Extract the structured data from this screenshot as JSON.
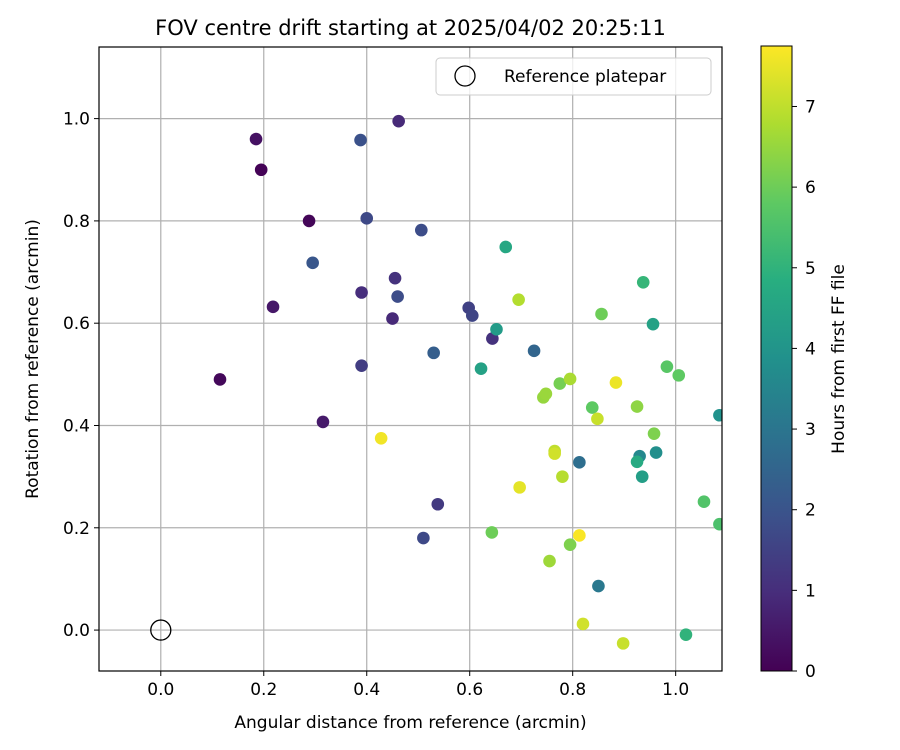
{
  "chart_data": {
    "type": "scatter",
    "title": "FOV centre drift starting at 2025/04/02 20:25:11",
    "xlabel": "Angular distance from reference (arcmin)",
    "ylabel": "Rotation from reference (arcmin)",
    "xlim": [
      -0.12,
      1.09
    ],
    "ylim": [
      -0.08,
      1.14
    ],
    "xticks": [
      "0.0",
      "0.2",
      "0.4",
      "0.6",
      "0.8",
      "1.0"
    ],
    "yticks": [
      "0.0",
      "0.2",
      "0.4",
      "0.6",
      "0.8",
      "1.0"
    ],
    "grid": true,
    "legend": {
      "placement": "top-right",
      "entries": [
        "Reference platepar"
      ]
    },
    "reference_point": {
      "x": 0.0,
      "y": 0.0,
      "marker": "open-circle",
      "color": "#000000"
    },
    "colorbar": {
      "label": "Hours from first FF file",
      "min": 0,
      "max": 7.75,
      "ticks": [
        "0",
        "1",
        "2",
        "3",
        "4",
        "5",
        "6",
        "7"
      ],
      "colormap": "viridis"
    },
    "points": [
      {
        "x": 0.195,
        "y": 0.9,
        "h": 0.05
      },
      {
        "x": 0.288,
        "y": 0.8,
        "h": 0.1
      },
      {
        "x": 0.115,
        "y": 0.49,
        "h": 0.15
      },
      {
        "x": 0.185,
        "y": 0.96,
        "h": 0.35
      },
      {
        "x": 0.218,
        "y": 0.632,
        "h": 0.5
      },
      {
        "x": 0.315,
        "y": 0.407,
        "h": 0.55
      },
      {
        "x": 0.462,
        "y": 0.995,
        "h": 0.9
      },
      {
        "x": 0.45,
        "y": 0.609,
        "h": 0.9
      },
      {
        "x": 0.39,
        "y": 0.66,
        "h": 1.0
      },
      {
        "x": 0.455,
        "y": 0.688,
        "h": 1.1
      },
      {
        "x": 0.644,
        "y": 0.57,
        "h": 1.1
      },
      {
        "x": 0.538,
        "y": 0.246,
        "h": 1.3
      },
      {
        "x": 0.39,
        "y": 0.517,
        "h": 1.4
      },
      {
        "x": 0.598,
        "y": 0.63,
        "h": 1.5
      },
      {
        "x": 0.605,
        "y": 0.615,
        "h": 1.6
      },
      {
        "x": 0.4,
        "y": 0.805,
        "h": 1.7
      },
      {
        "x": 0.51,
        "y": 0.18,
        "h": 1.7
      },
      {
        "x": 0.46,
        "y": 0.652,
        "h": 1.8
      },
      {
        "x": 0.506,
        "y": 0.782,
        "h": 1.8
      },
      {
        "x": 0.388,
        "y": 0.958,
        "h": 1.9
      },
      {
        "x": 0.295,
        "y": 0.718,
        "h": 2.05
      },
      {
        "x": 0.53,
        "y": 0.542,
        "h": 2.3
      },
      {
        "x": 0.725,
        "y": 0.546,
        "h": 2.5
      },
      {
        "x": 0.813,
        "y": 0.328,
        "h": 2.8
      },
      {
        "x": 0.85,
        "y": 0.086,
        "h": 3.1
      },
      {
        "x": 0.93,
        "y": 0.34,
        "h": 3.6
      },
      {
        "x": 0.962,
        "y": 0.347,
        "h": 3.8
      },
      {
        "x": 1.085,
        "y": 0.42,
        "h": 3.9
      },
      {
        "x": 0.652,
        "y": 0.588,
        "h": 4.2
      },
      {
        "x": 0.935,
        "y": 0.3,
        "h": 4.3
      },
      {
        "x": 0.622,
        "y": 0.511,
        "h": 4.4
      },
      {
        "x": 0.956,
        "y": 0.598,
        "h": 4.4
      },
      {
        "x": 0.67,
        "y": 0.749,
        "h": 4.6
      },
      {
        "x": 0.925,
        "y": 0.329,
        "h": 4.7
      },
      {
        "x": 1.02,
        "y": -0.009,
        "h": 5.0
      },
      {
        "x": 0.937,
        "y": 0.68,
        "h": 5.1
      },
      {
        "x": 1.085,
        "y": 0.207,
        "h": 5.5
      },
      {
        "x": 1.055,
        "y": 0.251,
        "h": 5.6
      },
      {
        "x": 0.983,
        "y": 0.515,
        "h": 5.7
      },
      {
        "x": 1.006,
        "y": 0.498,
        "h": 5.8
      },
      {
        "x": 0.838,
        "y": 0.435,
        "h": 5.8
      },
      {
        "x": 0.643,
        "y": 0.191,
        "h": 6.0
      },
      {
        "x": 0.856,
        "y": 0.618,
        "h": 6.0
      },
      {
        "x": 0.775,
        "y": 0.482,
        "h": 6.1
      },
      {
        "x": 0.958,
        "y": 0.384,
        "h": 6.2
      },
      {
        "x": 0.795,
        "y": 0.167,
        "h": 6.2
      },
      {
        "x": 0.925,
        "y": 0.437,
        "h": 6.4
      },
      {
        "x": 0.743,
        "y": 0.455,
        "h": 6.5
      },
      {
        "x": 0.748,
        "y": 0.462,
        "h": 6.55
      },
      {
        "x": 0.755,
        "y": 0.135,
        "h": 6.6
      },
      {
        "x": 0.795,
        "y": 0.491,
        "h": 6.75
      },
      {
        "x": 0.695,
        "y": 0.646,
        "h": 6.85
      },
      {
        "x": 0.78,
        "y": 0.3,
        "h": 6.9
      },
      {
        "x": 0.765,
        "y": 0.35,
        "h": 7.0
      },
      {
        "x": 0.848,
        "y": 0.413,
        "h": 7.1
      },
      {
        "x": 0.898,
        "y": -0.026,
        "h": 7.1
      },
      {
        "x": 0.82,
        "y": 0.012,
        "h": 7.2
      },
      {
        "x": 0.765,
        "y": 0.345,
        "h": 7.2
      },
      {
        "x": 0.697,
        "y": 0.279,
        "h": 7.45
      },
      {
        "x": 0.884,
        "y": 0.484,
        "h": 7.55
      },
      {
        "x": 0.428,
        "y": 0.375,
        "h": 7.6
      },
      {
        "x": 0.813,
        "y": 0.185,
        "h": 7.7
      }
    ]
  }
}
